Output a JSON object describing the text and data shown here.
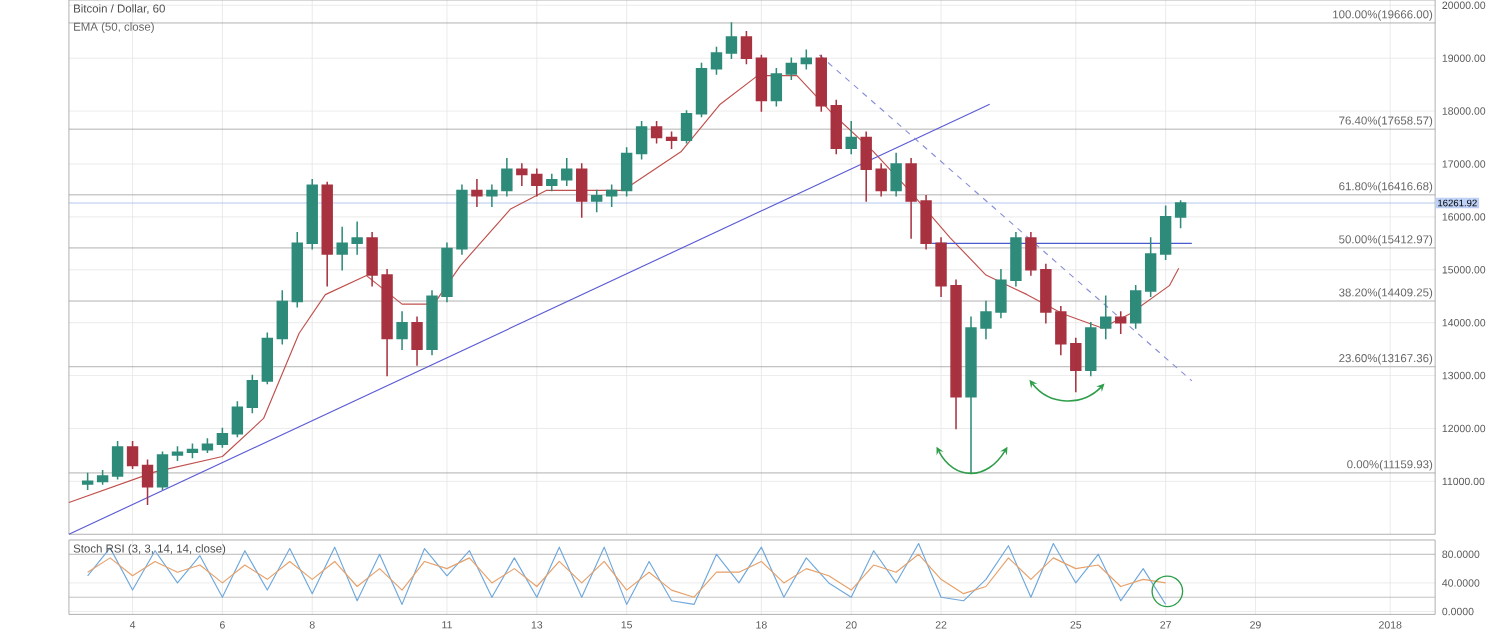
{
  "chart_data": [
    {
      "type": "candlestick",
      "title": "Bitcoin / Dollar, 60",
      "subtitle": "EMA (50, close)",
      "x": [
        "2017-12-03T00:00",
        "2017-12-03T08:00",
        "2017-12-03T16:00",
        "2017-12-04T00:00",
        "2017-12-04T08:00",
        "2017-12-04T16:00",
        "2017-12-05T00:00",
        "2017-12-05T08:00",
        "2017-12-05T16:00",
        "2017-12-06T00:00",
        "2017-12-06T08:00",
        "2017-12-06T16:00",
        "2017-12-07T00:00",
        "2017-12-07T08:00",
        "2017-12-07T16:00",
        "2017-12-08T00:00",
        "2017-12-08T08:00",
        "2017-12-08T16:00",
        "2017-12-09T00:00",
        "2017-12-09T08:00",
        "2017-12-09T16:00",
        "2017-12-10T00:00",
        "2017-12-10T08:00",
        "2017-12-10T16:00",
        "2017-12-11T00:00",
        "2017-12-11T08:00",
        "2017-12-11T16:00",
        "2017-12-12T00:00",
        "2017-12-12T08:00",
        "2017-12-12T16:00",
        "2017-12-13T00:00",
        "2017-12-13T08:00",
        "2017-12-13T16:00",
        "2017-12-14T00:00",
        "2017-12-14T08:00",
        "2017-12-14T16:00",
        "2017-12-15T00:00",
        "2017-12-15T08:00",
        "2017-12-15T16:00",
        "2017-12-16T00:00",
        "2017-12-16T08:00",
        "2017-12-16T16:00",
        "2017-12-17T00:00",
        "2017-12-17T08:00",
        "2017-12-17T16:00",
        "2017-12-18T00:00",
        "2017-12-18T08:00",
        "2017-12-18T16:00",
        "2017-12-19T00:00",
        "2017-12-19T08:00",
        "2017-12-19T16:00",
        "2017-12-20T00:00",
        "2017-12-20T08:00",
        "2017-12-20T16:00",
        "2017-12-21T00:00",
        "2017-12-21T08:00",
        "2017-12-21T16:00",
        "2017-12-22T00:00",
        "2017-12-22T08:00",
        "2017-12-22T16:00",
        "2017-12-23T00:00",
        "2017-12-23T08:00",
        "2017-12-23T16:00",
        "2017-12-24T00:00",
        "2017-12-24T08:00",
        "2017-12-24T16:00",
        "2017-12-25T00:00",
        "2017-12-25T08:00",
        "2017-12-25T16:00",
        "2017-12-26T00:00",
        "2017-12-26T08:00",
        "2017-12-26T16:00",
        "2017-12-27T00:00",
        "2017-12-27T08:00"
      ],
      "ohlc": [
        [
          10950,
          11150,
          10850,
          11000
        ],
        [
          11000,
          11200,
          10950,
          11100
        ],
        [
          11100,
          11750,
          11050,
          11650
        ],
        [
          11650,
          11750,
          11250,
          11300
        ],
        [
          11300,
          11400,
          10570,
          10900
        ],
        [
          10900,
          11550,
          10850,
          11500
        ],
        [
          11500,
          11650,
          11400,
          11550
        ],
        [
          11550,
          11700,
          11450,
          11600
        ],
        [
          11600,
          11800,
          11550,
          11700
        ],
        [
          11700,
          12000,
          11650,
          11900
        ],
        [
          11900,
          12500,
          11850,
          12400
        ],
        [
          12400,
          13000,
          12300,
          12900
        ],
        [
          12900,
          13800,
          12850,
          13700
        ],
        [
          13700,
          14600,
          13600,
          14400
        ],
        [
          14400,
          15700,
          14300,
          15500
        ],
        [
          15500,
          16700,
          15400,
          16600
        ],
        [
          16600,
          16650,
          14700,
          15300
        ],
        [
          15300,
          15800,
          15000,
          15500
        ],
        [
          15500,
          15900,
          15300,
          15600
        ],
        [
          15600,
          15700,
          14700,
          14900
        ],
        [
          14900,
          15000,
          13000,
          13700
        ],
        [
          13700,
          14200,
          13500,
          14000
        ],
        [
          14000,
          14100,
          13200,
          13500
        ],
        [
          13500,
          14600,
          13400,
          14500
        ],
        [
          14500,
          15500,
          14400,
          15400
        ],
        [
          15400,
          16600,
          15300,
          16500
        ],
        [
          16500,
          16700,
          16200,
          16400
        ],
        [
          16400,
          16600,
          16200,
          16500
        ],
        [
          16500,
          17100,
          16400,
          16900
        ],
        [
          16900,
          17000,
          16600,
          16800
        ],
        [
          16800,
          16900,
          16400,
          16600
        ],
        [
          16600,
          16800,
          16500,
          16700
        ],
        [
          16700,
          17100,
          16600,
          16900
        ],
        [
          16900,
          17000,
          16000,
          16300
        ],
        [
          16300,
          16500,
          16100,
          16400
        ],
        [
          16400,
          16600,
          16200,
          16500
        ],
        [
          16500,
          17300,
          16400,
          17200
        ],
        [
          17200,
          17800,
          17100,
          17700
        ],
        [
          17700,
          17800,
          17400,
          17500
        ],
        [
          17500,
          17600,
          17300,
          17450
        ],
        [
          17450,
          18000,
          17400,
          17950
        ],
        [
          17950,
          18900,
          17900,
          18800
        ],
        [
          18800,
          19200,
          18700,
          19100
        ],
        [
          19100,
          19666,
          19000,
          19400
        ],
        [
          19400,
          19500,
          18900,
          19000
        ],
        [
          19000,
          19050,
          18000,
          18200
        ],
        [
          18200,
          18800,
          18100,
          18700
        ],
        [
          18700,
          19000,
          18600,
          18900
        ],
        [
          18900,
          19150,
          18800,
          19000
        ],
        [
          19000,
          19050,
          18000,
          18100
        ],
        [
          18100,
          18200,
          17200,
          17300
        ],
        [
          17300,
          17800,
          17200,
          17500
        ],
        [
          17500,
          17600,
          16300,
          16900
        ],
        [
          16900,
          17000,
          16400,
          16500
        ],
        [
          16500,
          17200,
          16400,
          17000
        ],
        [
          17000,
          17100,
          15600,
          16300
        ],
        [
          16300,
          16400,
          15400,
          15500
        ],
        [
          15500,
          15600,
          14500,
          14700
        ],
        [
          14700,
          14800,
          12000,
          12600
        ],
        [
          12600,
          14100,
          11160,
          13900
        ],
        [
          13900,
          14400,
          13700,
          14200
        ],
        [
          14200,
          15000,
          14100,
          14800
        ],
        [
          14800,
          15700,
          14700,
          15600
        ],
        [
          15600,
          15700,
          14900,
          15000
        ],
        [
          15000,
          15100,
          14000,
          14200
        ],
        [
          14200,
          14300,
          13400,
          13600
        ],
        [
          13600,
          13700,
          12700,
          13100
        ],
        [
          13100,
          14000,
          13000,
          13900
        ],
        [
          13900,
          14500,
          13700,
          14100
        ],
        [
          14100,
          14200,
          13800,
          14000
        ],
        [
          14000,
          14700,
          13900,
          14600
        ],
        [
          14600,
          15600,
          14500,
          15300
        ],
        [
          15300,
          16200,
          15200,
          16000
        ],
        [
          16000,
          16300,
          15800,
          16261.92
        ]
      ],
      "colors": [
        "#2e8b7a",
        "#2e8b7a",
        "#2e8b7a",
        "#a83240",
        "#a83240",
        "#2e8b7a",
        "#2e8b7a",
        "#2e8b7a",
        "#2e8b7a",
        "#2e8b7a",
        "#2e8b7a",
        "#2e8b7a",
        "#2e8b7a",
        "#2e8b7a",
        "#2e8b7a",
        "#2e8b7a",
        "#a83240",
        "#2e8b7a",
        "#2e8b7a",
        "#a83240",
        "#a83240",
        "#2e8b7a",
        "#a83240",
        "#2e8b7a",
        "#2e8b7a",
        "#2e8b7a",
        "#a83240",
        "#2e8b7a",
        "#2e8b7a",
        "#a83240",
        "#a83240",
        "#2e8b7a",
        "#2e8b7a",
        "#a83240",
        "#2e8b7a",
        "#2e8b7a",
        "#2e8b7a",
        "#2e8b7a",
        "#a83240",
        "#a83240",
        "#2e8b7a",
        "#2e8b7a",
        "#2e8b7a",
        "#2e8b7a",
        "#a83240",
        "#a83240",
        "#2e8b7a",
        "#2e8b7a",
        "#2e8b7a",
        "#a83240",
        "#a83240",
        "#2e8b7a",
        "#a83240",
        "#a83240",
        "#2e8b7a",
        "#a83240",
        "#a83240",
        "#a83240",
        "#a83240",
        "#2e8b7a",
        "#2e8b7a",
        "#2e8b7a",
        "#2e8b7a",
        "#a83240",
        "#a83240",
        "#a83240",
        "#a83240",
        "#2e8b7a",
        "#2e8b7a",
        "#a83240",
        "#2e8b7a",
        "#2e8b7a",
        "#2e8b7a",
        "#2e8b7a"
      ],
      "series": [
        {
          "type": "line",
          "color": "#c0504d",
          "x": [
            "2017-12-02T14:00",
            "2017-12-04T12:00",
            "2017-12-06T00:00",
            "2017-12-06T22:00",
            "2017-12-07T17:00",
            "2017-12-08T07:00",
            "2017-12-09T05:00",
            "2017-12-10T00:00",
            "2017-12-10T17:00",
            "2017-12-11T07:00",
            "2017-12-12T10:00",
            "2017-12-13T05:00",
            "2017-12-14T22:00",
            "2017-12-16T05:00",
            "2017-12-17T02:00",
            "2017-12-17T22:00",
            "2017-12-18T19:00",
            "2017-12-19T14:00",
            "2017-12-20T12:00",
            "2017-12-21T07:00",
            "2017-12-22T05:00",
            "2017-12-23T00:00",
            "2017-12-23T22:00",
            "2017-12-24T17:00",
            "2017-12-25T14:00",
            "2017-12-26T05:00",
            "2017-12-27T02:00",
            "2017-12-27T07:00"
          ],
          "values": [
            10600,
            11180,
            11470,
            12190,
            13800,
            14530,
            14890,
            14350,
            14350,
            15070,
            16150,
            16500,
            16500,
            17230,
            18130,
            18670,
            18670,
            17950,
            17230,
            16500,
            15600,
            14900,
            14530,
            14170,
            13900,
            14170,
            14700,
            15030
          ]
        },
        {
          "type": "line",
          "color": "#5b5bd6",
          "x": [
            "2017-12-02T14:00",
            "2017-12-23T02:00"
          ],
          "values": [
            10000,
            18130
          ]
        },
        {
          "type": "line",
          "color": "#8a8fd6",
          "line_style": "dashed",
          "x": [
            "2017-12-19T07:00",
            "2017-12-27T14:00"
          ],
          "values": [
            19060,
            12900
          ]
        },
        {
          "type": "line",
          "color": "#4a5bd0",
          "x": [
            "2017-12-21T19:00",
            "2017-12-27T14:00"
          ],
          "values": [
            15500,
            15500
          ]
        }
      ],
      "xlim": [
        "2017-12-02T14:00",
        "2018-01-02T00:00"
      ],
      "xticks": [
        {
          "value": "2017-12-04T00:00",
          "label": null
        },
        {
          "value": "2017-12-06T00:00",
          "label": null
        },
        {
          "value": "2017-12-08T00:00",
          "label": null
        },
        {
          "value": "2017-12-11T00:00",
          "label": null
        },
        {
          "value": "2017-12-13T00:00",
          "label": null
        },
        {
          "value": "2017-12-15T00:00",
          "label": null
        },
        {
          "value": "2017-12-18T00:00",
          "label": null
        },
        {
          "value": "2017-12-20T00:00",
          "label": null
        },
        {
          "value": "2017-12-22T00:00",
          "label": null
        },
        {
          "value": "2017-12-25T00:00",
          "label": null
        },
        {
          "value": "2017-12-27T00:00",
          "label": null
        },
        {
          "value": "2017-12-29T00:00",
          "label": null
        },
        {
          "value": "2018-01-01T00:00",
          "label": null
        }
      ],
      "ylim": [
        10000,
        20100
      ],
      "yticks": [
        {
          "value": 11000,
          "label": "11000.00"
        },
        {
          "value": 12000,
          "label": "12000.00"
        },
        {
          "value": 13000,
          "label": "13000.00"
        },
        {
          "value": 14000,
          "label": "14000.00"
        },
        {
          "value": 15000,
          "label": "15000.00"
        },
        {
          "value": 16000,
          "label": "16000.00"
        },
        {
          "value": 17000,
          "label": "17000.00"
        },
        {
          "value": 18000,
          "label": "18000.00"
        },
        {
          "value": 19000,
          "label": "19000.00"
        },
        {
          "value": 20000,
          "label": "20000.00"
        }
      ],
      "ref_lines": [
        {
          "axis": "y",
          "value": 19666,
          "label": "100.00%(19666.00)",
          "color": "#9a9a9a"
        },
        {
          "axis": "y",
          "value": 17658.57,
          "label": "76.40%(17658.57)",
          "color": "#9a9a9a"
        },
        {
          "axis": "y",
          "value": 16416.68,
          "label": "61.80%(16416.68)",
          "color": "#9a9a9a"
        },
        {
          "axis": "y",
          "value": 15412.97,
          "label": "50.00%(15412.97)",
          "color": "#9a9a9a"
        },
        {
          "axis": "y",
          "value": 14409.25,
          "label": "38.20%(14409.25)",
          "color": "#9a9a9a"
        },
        {
          "axis": "y",
          "value": 13167.36,
          "label": "23.60%(13167.36)",
          "color": "#9a9a9a"
        },
        {
          "axis": "y",
          "value": 11159.93,
          "label": "0.00%(11159.93)",
          "color": "#9a9a9a"
        },
        {
          "axis": "y",
          "value": 16261.92,
          "color": "#9fb8e8"
        }
      ],
      "annotations": [
        {
          "text": "16261.92",
          "x": "2018-01-02T00:00",
          "y": 16261.92
        }
      ],
      "grid": true,
      "tick_labels": "y"
    },
    {
      "type": "line",
      "title": "Stoch RSI (3, 3, 14, 14, close)",
      "x": [
        "2017-12-03T00:00",
        "2017-12-03T12:00",
        "2017-12-04T00:00",
        "2017-12-04T12:00",
        "2017-12-05T00:00",
        "2017-12-05T12:00",
        "2017-12-06T00:00",
        "2017-12-06T12:00",
        "2017-12-07T00:00",
        "2017-12-07T12:00",
        "2017-12-08T00:00",
        "2017-12-08T12:00",
        "2017-12-09T00:00",
        "2017-12-09T12:00",
        "2017-12-10T00:00",
        "2017-12-10T12:00",
        "2017-12-11T00:00",
        "2017-12-11T12:00",
        "2017-12-12T00:00",
        "2017-12-12T12:00",
        "2017-12-13T00:00",
        "2017-12-13T12:00",
        "2017-12-14T00:00",
        "2017-12-14T12:00",
        "2017-12-15T00:00",
        "2017-12-15T12:00",
        "2017-12-16T00:00",
        "2017-12-16T12:00",
        "2017-12-17T00:00",
        "2017-12-17T12:00",
        "2017-12-18T00:00",
        "2017-12-18T12:00",
        "2017-12-19T00:00",
        "2017-12-19T12:00",
        "2017-12-20T00:00",
        "2017-12-20T12:00",
        "2017-12-21T00:00",
        "2017-12-21T12:00",
        "2017-12-22T00:00",
        "2017-12-22T12:00",
        "2017-12-23T00:00",
        "2017-12-23T12:00",
        "2017-12-24T00:00",
        "2017-12-24T12:00",
        "2017-12-25T00:00",
        "2017-12-25T12:00",
        "2017-12-26T00:00",
        "2017-12-26T12:00",
        "2017-12-27T00:00"
      ],
      "series": [
        {
          "color": "#6fa8dc",
          "values": [
            50,
            89,
            30,
            85,
            40,
            78,
            20,
            85,
            30,
            88,
            25,
            90,
            15,
            80,
            10,
            88,
            50,
            85,
            20,
            75,
            20,
            90,
            20,
            90,
            10,
            70,
            15,
            10,
            80,
            40,
            90,
            20,
            75,
            40,
            20,
            85,
            40,
            95,
            20,
            15,
            45,
            92,
            20,
            95,
            40,
            80,
            15,
            60,
            10
          ]
        },
        {
          "color": "#e6a06a",
          "values": [
            55,
            75,
            50,
            70,
            55,
            65,
            40,
            65,
            45,
            70,
            45,
            70,
            35,
            60,
            30,
            70,
            60,
            75,
            40,
            60,
            35,
            70,
            40,
            70,
            30,
            55,
            30,
            20,
            55,
            55,
            70,
            40,
            60,
            50,
            30,
            65,
            55,
            80,
            45,
            25,
            35,
            75,
            45,
            75,
            60,
            65,
            35,
            45,
            40
          ]
        }
      ],
      "xlim": [
        "2017-12-02T14:00",
        "2018-01-02T00:00"
      ],
      "xticks": [
        {
          "value": "2017-12-04T00:00",
          "label": "4"
        },
        {
          "value": "2017-12-06T00:00",
          "label": "6"
        },
        {
          "value": "2017-12-08T00:00",
          "label": "8"
        },
        {
          "value": "2017-12-11T00:00",
          "label": "11"
        },
        {
          "value": "2017-12-13T00:00",
          "label": "13"
        },
        {
          "value": "2017-12-15T00:00",
          "label": "15"
        },
        {
          "value": "2017-12-18T00:00",
          "label": "18"
        },
        {
          "value": "2017-12-20T00:00",
          "label": "20"
        },
        {
          "value": "2017-12-22T00:00",
          "label": "22"
        },
        {
          "value": "2017-12-25T00:00",
          "label": "25"
        },
        {
          "value": "2017-12-27T00:00",
          "label": "27"
        },
        {
          "value": "2017-12-29T00:00",
          "label": "29"
        },
        {
          "value": "2018-01-01T00:00",
          "label": "2018"
        }
      ],
      "ylim": [
        -4,
        100
      ],
      "yticks": [
        {
          "value": 0,
          "label": "0.0000"
        },
        {
          "value": 40,
          "label": "40.0000"
        },
        {
          "value": 80,
          "label": "80.0000"
        }
      ],
      "ref_lines": [
        {
          "axis": "y",
          "value": 80,
          "color": "#b0b0b0"
        },
        {
          "axis": "y",
          "value": 20,
          "color": "#b0b0b0"
        }
      ],
      "grid": true
    }
  ]
}
